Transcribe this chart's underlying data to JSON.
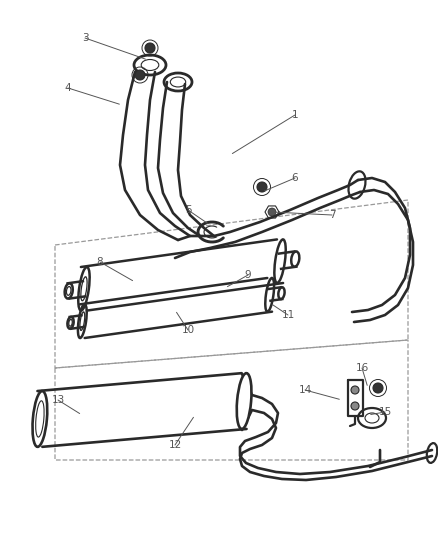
{
  "bg_color": "#ffffff",
  "line_color": "#2a2a2a",
  "label_color": "#555555",
  "dashed_color": "#999999",
  "lw_main": 1.6,
  "lw_thin": 0.8,
  "lw_pipe": 2.2,
  "callouts": [
    [
      "1",
      295,
      115,
      230,
      155
    ],
    [
      "3",
      85,
      38,
      148,
      60
    ],
    [
      "4",
      68,
      88,
      122,
      105
    ],
    [
      "5",
      188,
      210,
      210,
      225
    ],
    [
      "6",
      295,
      178,
      262,
      192
    ],
    [
      "7",
      332,
      215,
      272,
      212
    ],
    [
      "8",
      100,
      262,
      135,
      282
    ],
    [
      "9",
      248,
      275,
      225,
      288
    ],
    [
      "10",
      188,
      330,
      175,
      310
    ],
    [
      "11",
      288,
      315,
      270,
      303
    ],
    [
      "12",
      175,
      445,
      195,
      415
    ],
    [
      "13",
      58,
      400,
      82,
      415
    ],
    [
      "14",
      305,
      390,
      342,
      400
    ],
    [
      "15",
      385,
      412,
      368,
      415
    ],
    [
      "16",
      362,
      368,
      368,
      388
    ]
  ]
}
